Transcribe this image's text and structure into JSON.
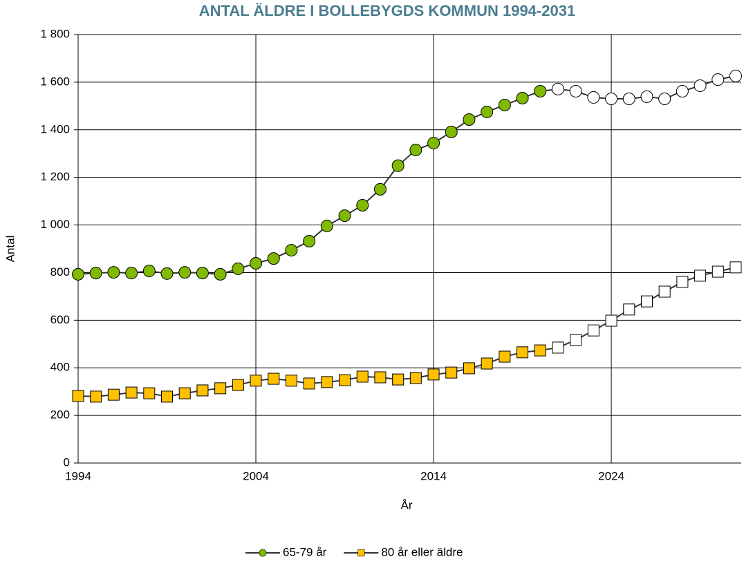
{
  "chart_data": {
    "type": "line",
    "title": "ANTAL ÄLDRE I BOLLEBYGDS KOMMUN 1994-2031",
    "x_label": "År",
    "y_label": "Antal",
    "x": [
      1994,
      1995,
      1996,
      1997,
      1998,
      1999,
      2000,
      2001,
      2002,
      2003,
      2004,
      2005,
      2006,
      2007,
      2008,
      2009,
      2010,
      2011,
      2012,
      2013,
      2014,
      2015,
      2016,
      2017,
      2018,
      2019,
      2020,
      2021,
      2022,
      2023,
      2024,
      2025,
      2026,
      2027,
      2028,
      2029,
      2030,
      2031
    ],
    "series": [
      {
        "name": "65-79 år",
        "color": "#7fba00",
        "marker": "circle",
        "values": [
          793,
          798,
          801,
          798,
          807,
          796,
          801,
          798,
          793,
          816,
          839,
          859,
          894,
          932,
          996,
          1039,
          1083,
          1150,
          1249,
          1315,
          1344,
          1391,
          1443,
          1475,
          1504,
          1533,
          1562,
          1571,
          1562,
          1536,
          1530,
          1530,
          1539,
          1530,
          1562,
          1585,
          1611,
          1626
        ]
      },
      {
        "name": "80 år eller äldre",
        "color": "#ffc000",
        "marker": "square",
        "values": [
          282,
          279,
          287,
          296,
          293,
          279,
          293,
          305,
          314,
          328,
          346,
          354,
          346,
          334,
          340,
          348,
          363,
          360,
          351,
          357,
          372,
          380,
          398,
          418,
          447,
          465,
          473,
          485,
          517,
          557,
          598,
          645,
          679,
          720,
          761,
          787,
          804,
          822
        ]
      }
    ],
    "forecast_from": 2021,
    "forecast_fill": "#ffffff",
    "line_color": "#333333",
    "xlim": [
      1994,
      2031
    ],
    "xticks": [
      1994,
      2004,
      2014,
      2024
    ],
    "ylim": [
      0,
      1800
    ],
    "yticks": [
      0,
      200,
      400,
      600,
      800,
      {
        "value": 1000,
        "label": "1 000"
      },
      {
        "value": 1200,
        "label": "1 200"
      },
      {
        "value": 1400,
        "label": "1 400"
      },
      {
        "value": 1600,
        "label": "1 600"
      },
      {
        "value": 1800,
        "label": "1 800"
      }
    ],
    "grid": true,
    "legend_position": "bottom"
  }
}
